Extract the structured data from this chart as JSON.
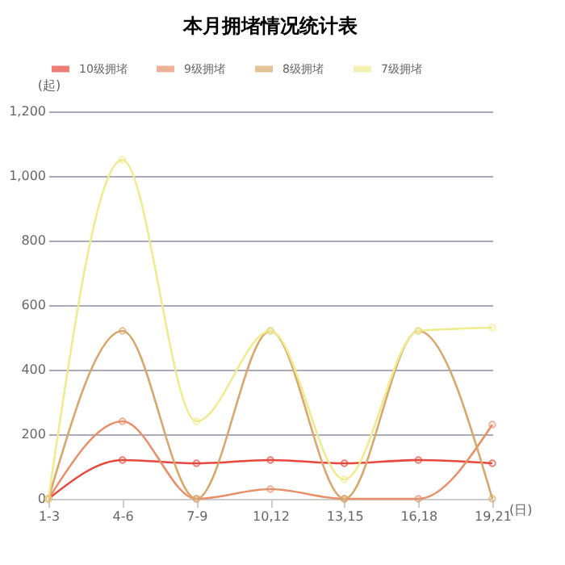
{
  "chart_data": {
    "type": "line",
    "title": "本月拥堵情况统计表",
    "xlabel": "(日)",
    "ylabel": "(起)",
    "categories": [
      "1-3",
      "4-6",
      "7-9",
      "10,12",
      "13,15",
      "16,18",
      "19,21"
    ],
    "series": [
      {
        "name": "10级拥堵",
        "color": "#e8473c",
        "values": [
          0,
          120,
          110,
          120,
          110,
          120,
          110
        ]
      },
      {
        "name": "9级拥堵",
        "color": "#e8906a",
        "values": [
          0,
          240,
          0,
          30,
          0,
          0,
          230
        ]
      },
      {
        "name": "8级拥堵",
        "color": "#d9a76b",
        "values": [
          0,
          520,
          0,
          520,
          0,
          520,
          0
        ]
      },
      {
        "name": "7级拥堵",
        "color": "#eeec8e",
        "values": [
          0,
          1050,
          240,
          520,
          60,
          520,
          530
        ]
      }
    ],
    "ylim": [
      0,
      1200
    ],
    "yticks": [
      0,
      200,
      400,
      600,
      800,
      {
        "value": 1000,
        "label": "1,000"
      },
      {
        "value": 1200,
        "label": "1,200"
      }
    ],
    "grid": "y",
    "legend": "top",
    "marker": "circle",
    "line_style": "solid"
  }
}
